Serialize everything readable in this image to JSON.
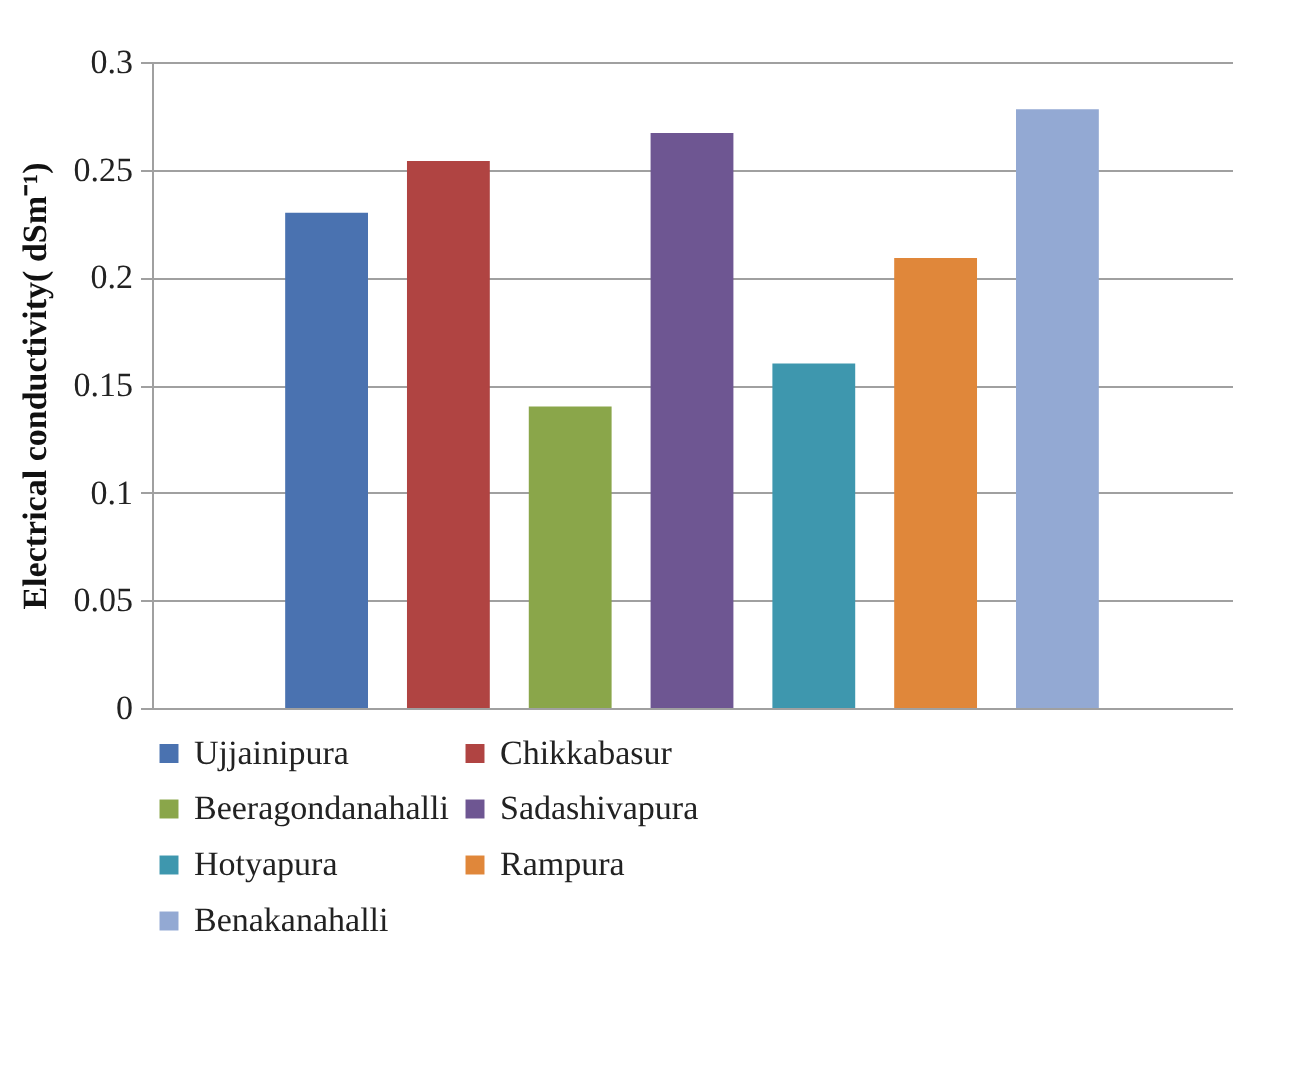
{
  "chart_data": {
    "type": "bar",
    "ylabel": "Electrical conductivity( dSm⁻¹)",
    "categories": [
      null
    ],
    "series": [
      {
        "name": "Ujjainipura",
        "color": "#4a72b0",
        "values": [
          0.23
        ]
      },
      {
        "name": "Chikkabasur",
        "color": "#b04442",
        "values": [
          0.254
        ]
      },
      {
        "name": "Beeragondanahalli",
        "color": "#8aa64a",
        "values": [
          0.14
        ]
      },
      {
        "name": "Sadashivapura",
        "color": "#6e5692",
        "values": [
          0.267
        ]
      },
      {
        "name": "Hotyapura",
        "color": "#3e97ae",
        "values": [
          0.16
        ]
      },
      {
        "name": "Rampura",
        "color": "#e0873a",
        "values": [
          0.209
        ]
      },
      {
        "name": "Benakanahalli",
        "color": "#93a9d3",
        "values": [
          0.278
        ]
      }
    ],
    "ylim": [
      0,
      0.3
    ],
    "yticks": [
      0,
      0.05,
      0.1,
      0.15,
      0.2,
      0.25,
      0.3
    ],
    "grid": "y",
    "legend": "bottom"
  }
}
